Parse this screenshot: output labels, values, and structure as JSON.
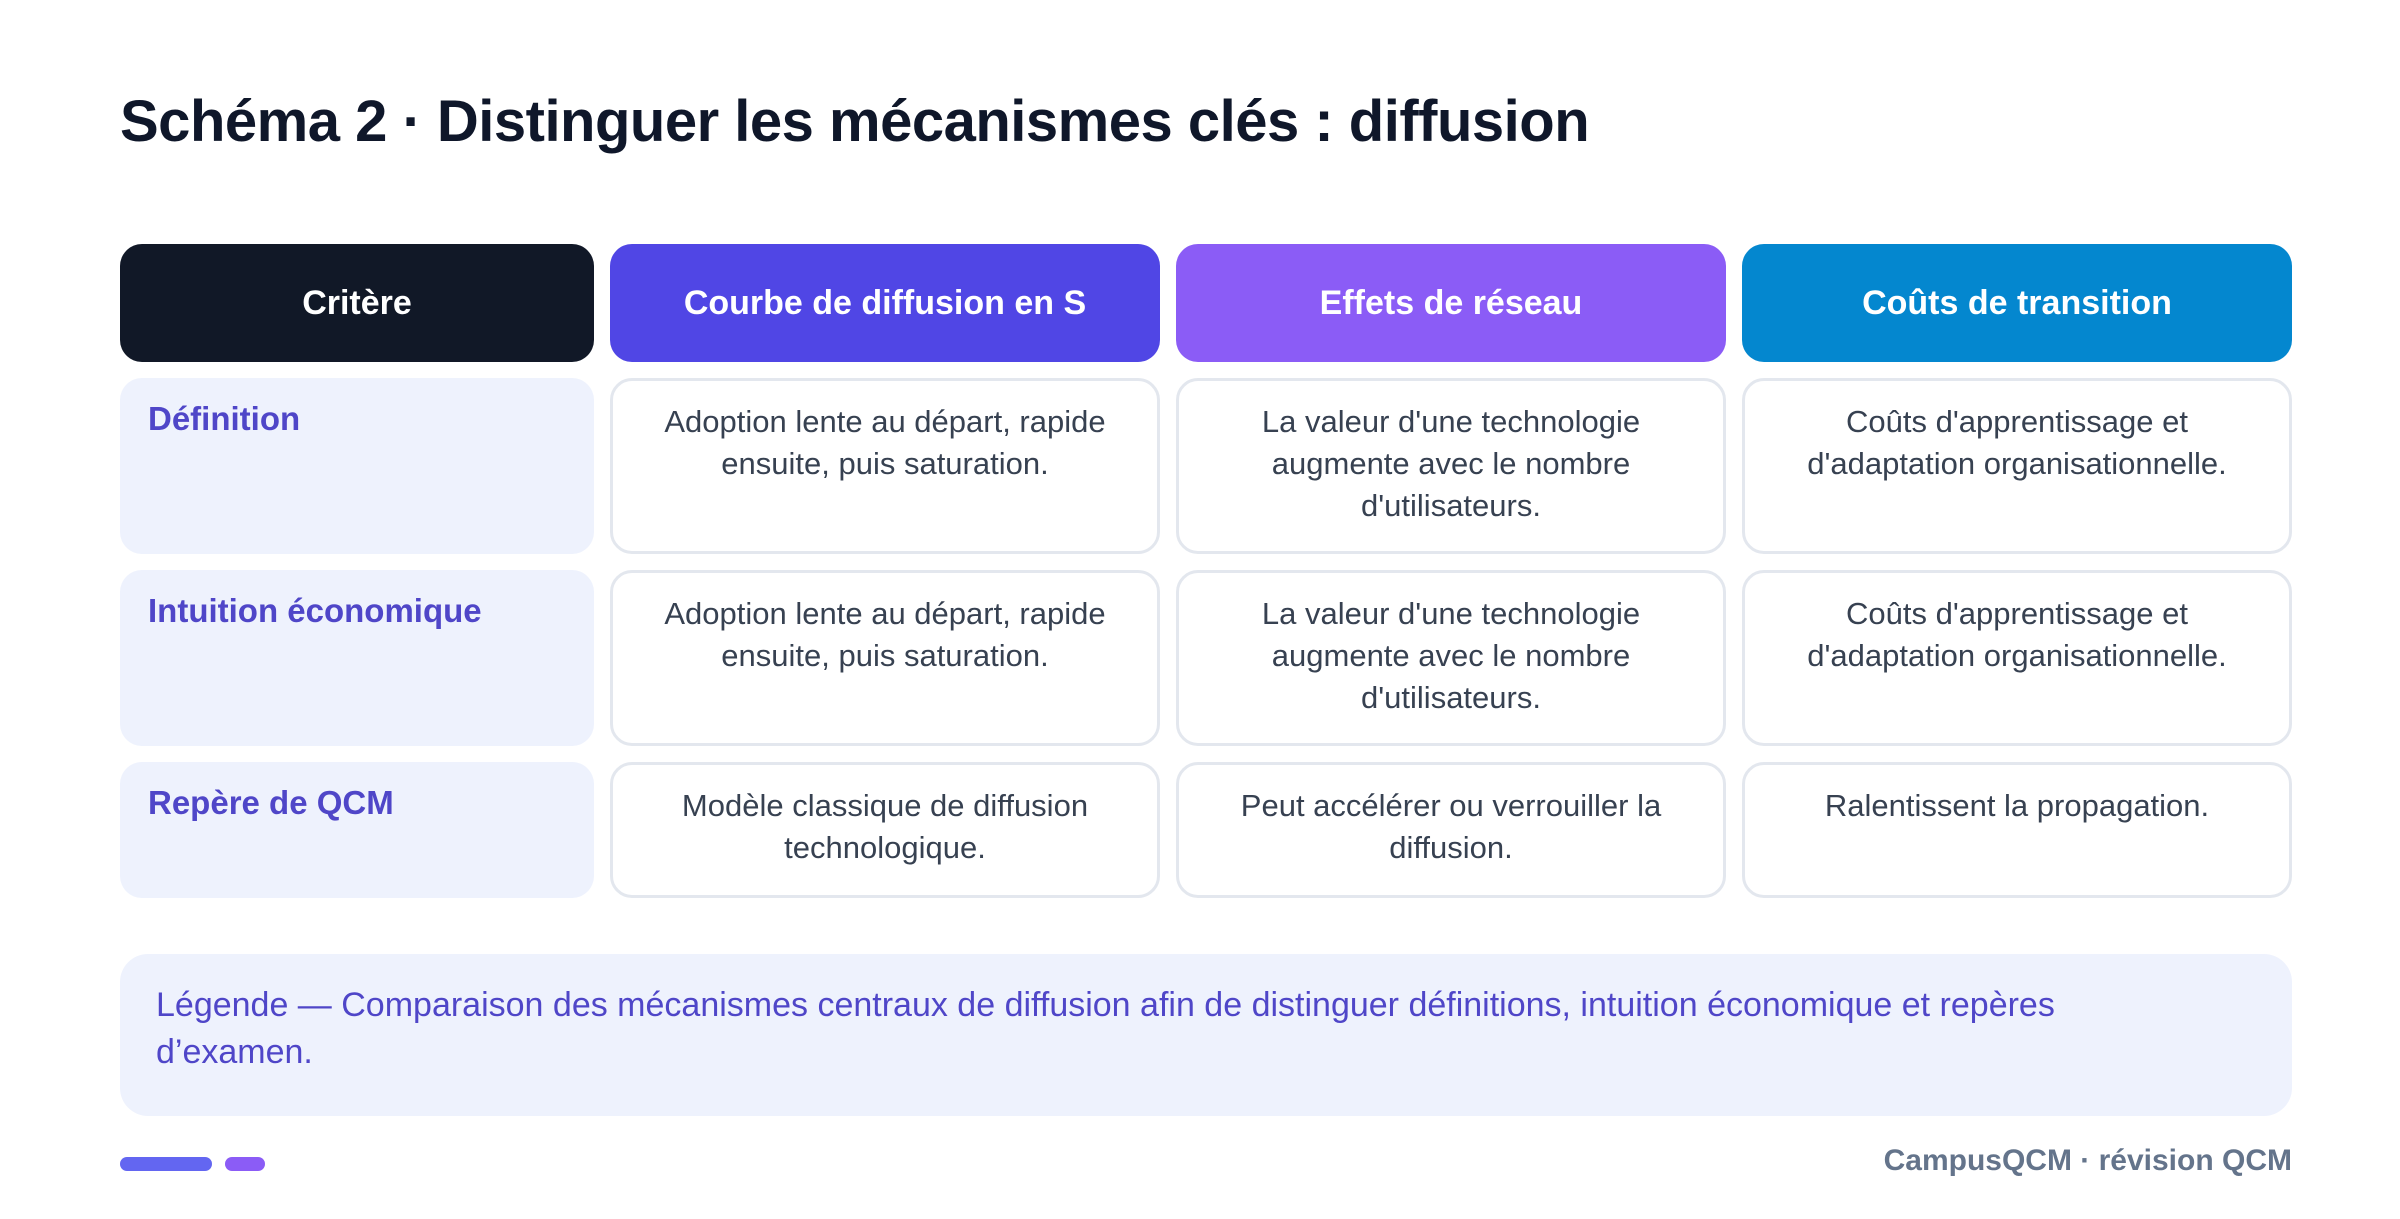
{
  "title": "Schéma 2 · Distinguer les mécanismes clés : diffusion",
  "table": {
    "headers": [
      "Critère",
      "Courbe de diffusion en S",
      "Effets de réseau",
      "Coûts de transition"
    ],
    "rows": [
      {
        "label": "Définition",
        "cells": [
          "Adoption lente au départ, rapide ensuite, puis saturation.",
          "La valeur d'une technologie augmente avec le nombre d'utilisateurs.",
          "Coûts d'apprentissage et d'adaptation organisationnelle."
        ]
      },
      {
        "label": "Intuition économique",
        "cells": [
          "Adoption lente au départ, rapide ensuite, puis saturation.",
          "La valeur d'une technologie augmente avec le nombre d'utilisateurs.",
          "Coûts d'apprentissage et d'adaptation organisationnelle."
        ]
      },
      {
        "label": "Repère de QCM",
        "cells": [
          "Modèle classique de diffusion technologique.",
          "Peut accélérer ou verrouiller la diffusion.",
          "Ralentissent la propagation."
        ]
      }
    ]
  },
  "legend": "Légende — Comparaison des mécanismes centraux de diffusion afin de distinguer définitions, intuition économique et repères d’examen.",
  "footer": "CampusQCM · révision QCM",
  "colors": {
    "criterion_header": "#111827",
    "s_curve_header": "#5046e5",
    "network_header": "#8b5cf6",
    "transition_header": "#0487cf",
    "label_text": "#4f46c8"
  }
}
